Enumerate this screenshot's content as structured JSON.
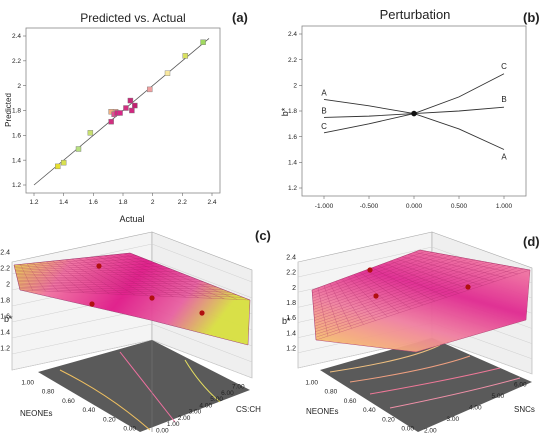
{
  "panels": {
    "a": {
      "letter": "(a)"
    },
    "b": {
      "letter": "(b)"
    },
    "c": {
      "letter": "(c)"
    },
    "d": {
      "letter": "(d)"
    }
  },
  "chart_data": [
    {
      "panel": "a",
      "type": "scatter",
      "title": "Predicted vs. Actual",
      "xlabel": "Actual",
      "ylabel": "Predicted",
      "xlim": [
        1.2,
        2.4
      ],
      "ylim": [
        1.2,
        2.4
      ],
      "xticks": [
        "1.2",
        "1.4",
        "1.6",
        "1.8",
        "2",
        "2.2",
        "2.4"
      ],
      "yticks": [
        "1.2",
        "1.4",
        "1.6",
        "1.8",
        "2",
        "2.2",
        "2.4"
      ],
      "fit_line": {
        "x": [
          1.2,
          2.38
        ],
        "y": [
          1.2,
          2.38
        ]
      },
      "points": [
        {
          "x": 1.36,
          "y": 1.35,
          "color": "#e8e030"
        },
        {
          "x": 1.4,
          "y": 1.38,
          "color": "#d8e050"
        },
        {
          "x": 1.5,
          "y": 1.49,
          "color": "#b8e080"
        },
        {
          "x": 1.58,
          "y": 1.62,
          "color": "#c8e070"
        },
        {
          "x": 1.72,
          "y": 1.71,
          "color": "#d03080"
        },
        {
          "x": 1.72,
          "y": 1.79,
          "color": "#f0b080"
        },
        {
          "x": 1.75,
          "y": 1.79,
          "color": "#f0a890"
        },
        {
          "x": 1.74,
          "y": 1.77,
          "color": "#e05090"
        },
        {
          "x": 1.76,
          "y": 1.78,
          "color": "#d02880"
        },
        {
          "x": 1.78,
          "y": 1.78,
          "color": "#d82888"
        },
        {
          "x": 1.82,
          "y": 1.82,
          "color": "#d03080"
        },
        {
          "x": 1.85,
          "y": 1.88,
          "color": "#c82878"
        },
        {
          "x": 1.86,
          "y": 1.8,
          "color": "#d02880"
        },
        {
          "x": 1.88,
          "y": 1.84,
          "color": "#c02070"
        },
        {
          "x": 1.98,
          "y": 1.97,
          "color": "#f0a0a0"
        },
        {
          "x": 2.1,
          "y": 2.1,
          "color": "#f8e8a0"
        },
        {
          "x": 2.22,
          "y": 2.24,
          "color": "#d8e060"
        },
        {
          "x": 2.34,
          "y": 2.35,
          "color": "#a0d860"
        }
      ]
    },
    {
      "panel": "b",
      "type": "line",
      "title": "Perturbation",
      "xlabel": "",
      "ylabel": "b*",
      "xlim": [
        -1.0,
        1.0
      ],
      "ylim": [
        1.2,
        2.4
      ],
      "xticks": [
        "-1.000",
        "-0.500",
        "0.000",
        "0.500",
        "1.000"
      ],
      "yticks": [
        "1.2",
        "1.4",
        "1.6",
        "1.8",
        "2",
        "2.2",
        "2.4"
      ],
      "x": [
        -1.0,
        -0.5,
        0.0,
        0.5,
        1.0
      ],
      "series": [
        {
          "name": "A",
          "values": [
            1.89,
            1.84,
            1.78,
            1.66,
            1.5
          ]
        },
        {
          "name": "B",
          "values": [
            1.75,
            1.76,
            1.78,
            1.8,
            1.83
          ]
        },
        {
          "name": "C",
          "values": [
            1.63,
            1.7,
            1.78,
            1.91,
            2.09
          ]
        }
      ],
      "center_point": {
        "x": 0.0,
        "y": 1.78
      }
    },
    {
      "panel": "c",
      "type": "surface3d",
      "zlabel": "b*",
      "xlabel": "NEONEs",
      "ylabel": "CS:CH",
      "zticks": [
        "1.2",
        "1.4",
        "1.6",
        "1.8",
        "2",
        "2.2",
        "2.4"
      ],
      "xticks": [
        "0.00",
        "0.20",
        "0.40",
        "0.60",
        "0.80",
        "1.00"
      ],
      "yticks": [
        "0.00",
        "1.00",
        "2.00",
        "3.00",
        "4.00",
        "5.00",
        "6.00",
        "7.00"
      ],
      "zlim": [
        1.2,
        2.4
      ]
    },
    {
      "panel": "d",
      "type": "surface3d",
      "zlabel": "b*",
      "xlabel": "NEONEs",
      "ylabel": "SNCs",
      "zticks": [
        "1.2",
        "1.4",
        "1.6",
        "1.8",
        "2",
        "2.2",
        "2.4"
      ],
      "xticks": [
        "0.00",
        "0.20",
        "0.40",
        "0.60",
        "0.80",
        "1.00"
      ],
      "yticks": [
        "2.00",
        "3.00",
        "4.00",
        "5.00",
        "6.00"
      ],
      "zlim": [
        1.2,
        2.4
      ]
    }
  ]
}
